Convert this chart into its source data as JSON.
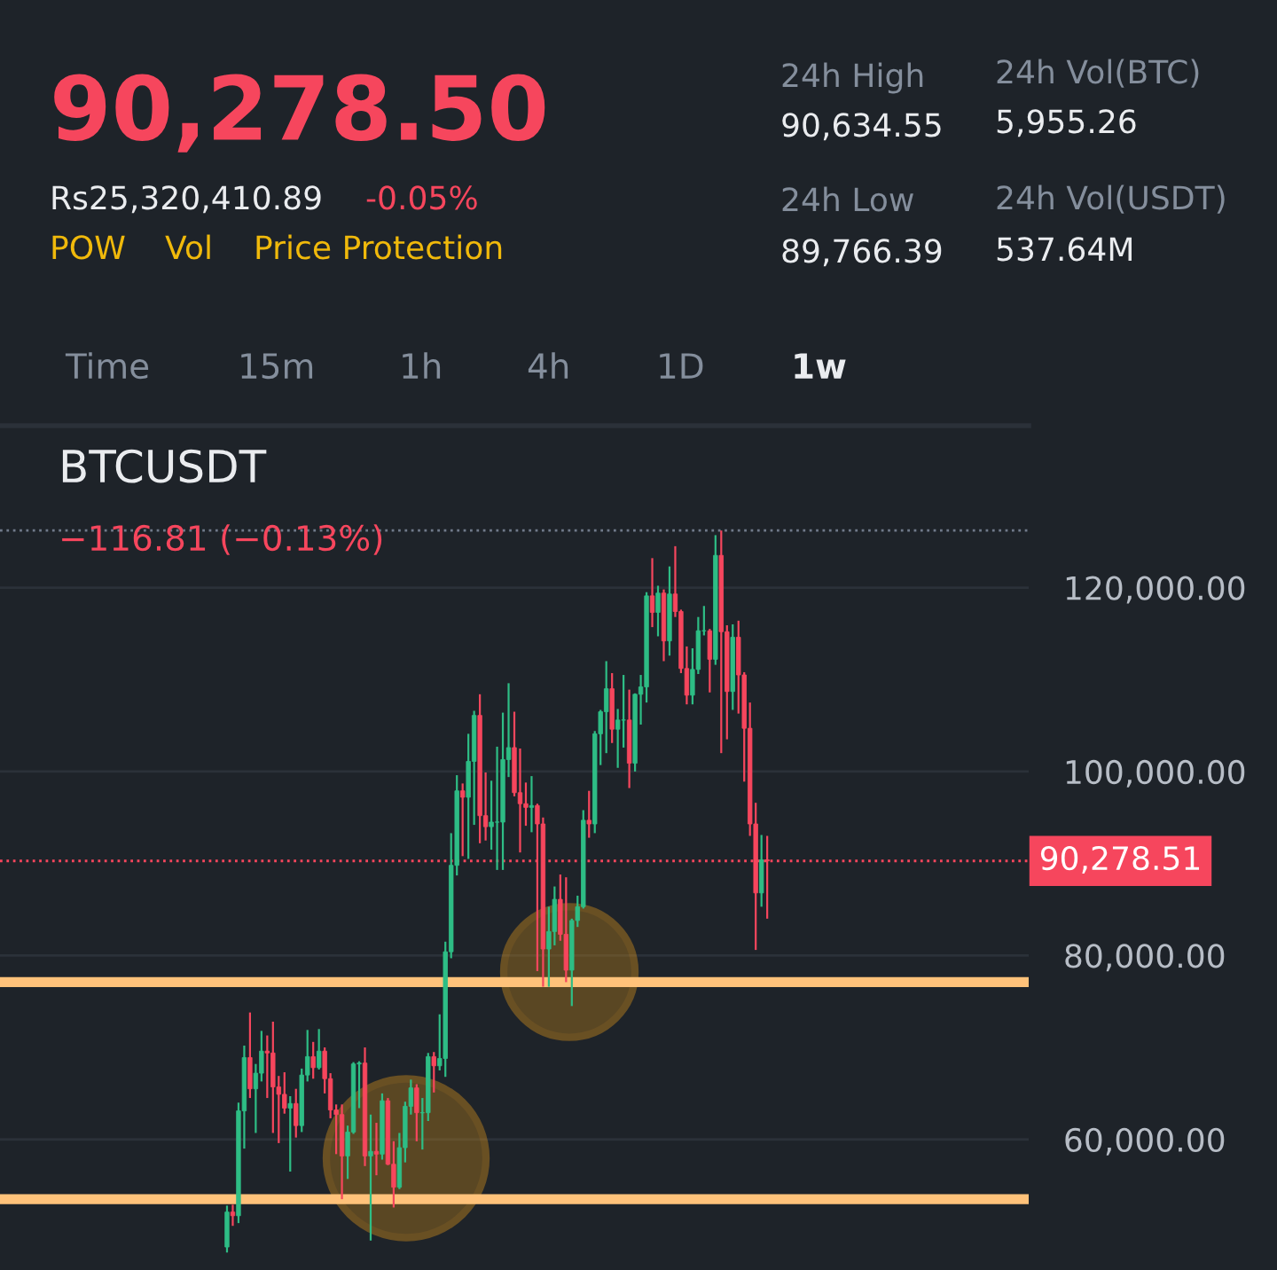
{
  "chart_data": {
    "type": "candlestick",
    "title": "BTCUSDT",
    "annotations": [
      "−116.81 (−0.13%)",
      "90,278.50",
      "Rs25,320,410.89",
      "-0.05%",
      "POW",
      "Vol",
      "Price Protection",
      "24h High",
      "90,634.55",
      "24h Low",
      "89,766.39",
      "24h Vol(BTC)",
      "5,955.26",
      "24h Vol(USDT)",
      "537.64M",
      "Time",
      "15m",
      "1h",
      "4h",
      "1D",
      "1w"
    ],
    "categories": [
      null,
      null,
      null,
      null,
      null,
      null,
      null,
      null,
      null,
      null,
      null,
      null,
      null,
      null,
      null,
      null,
      null,
      null,
      null,
      null,
      null,
      null,
      null,
      null,
      null,
      null,
      null,
      null,
      null,
      null,
      null,
      null,
      null,
      null,
      null,
      null,
      null,
      null,
      null,
      null,
      null,
      null,
      null,
      null,
      null,
      null,
      null,
      null,
      null,
      null,
      null,
      null,
      null,
      null,
      null,
      null,
      null,
      null,
      null,
      null,
      null,
      null,
      null,
      null,
      null,
      null,
      null,
      null,
      null,
      null,
      null,
      null,
      null,
      null,
      null,
      null,
      null,
      null,
      null,
      null,
      null,
      null,
      null,
      null,
      null,
      null,
      null,
      null,
      null,
      null,
      null,
      null,
      null,
      null,
      null,
      null,
      null,
      null,
      null,
      null,
      null,
      null,
      null,
      null,
      null,
      null,
      null,
      null,
      null,
      null,
      null,
      null,
      null,
      null,
      null,
      null,
      null,
      null,
      null,
      null,
      null,
      null,
      null,
      null,
      null,
      null,
      null,
      null,
      null,
      null,
      null,
      null,
      null,
      null,
      null,
      null,
      null,
      null,
      null,
      null,
      null,
      null,
      null,
      null,
      null,
      null,
      null,
      null,
      null,
      null,
      null,
      null,
      null,
      null,
      null,
      null,
      null,
      null,
      null,
      null,
      null,
      null,
      null,
      null,
      null,
      null,
      null,
      null,
      null,
      null,
      null,
      null,
      null,
      null,
      null,
      null,
      null,
      null,
      null
    ],
    "ohlc": [
      null,
      null,
      null,
      null,
      null,
      null,
      null,
      null,
      null,
      null,
      null,
      null,
      null,
      null,
      null,
      null,
      null,
      null,
      null,
      null,
      null,
      null,
      null,
      null,
      null,
      null,
      null,
      null,
      null,
      null,
      null,
      null,
      null,
      null,
      null,
      null,
      null,
      null,
      null,
      [
        48300,
        52800,
        47700,
        52100
      ],
      [
        52100,
        52900,
        50600,
        51700
      ],
      [
        51700,
        64000,
        50900,
        63100
      ],
      [
        63100,
        70200,
        59000,
        68900
      ],
      [
        68900,
        73800,
        64500,
        65500
      ],
      [
        65500,
        68200,
        60700,
        67200
      ],
      [
        67200,
        71800,
        66300,
        69600
      ],
      [
        69600,
        71300,
        64500,
        69400
      ],
      [
        69400,
        72800,
        60700,
        65700
      ],
      [
        65700,
        66900,
        59600,
        64900
      ],
      [
        64900,
        67300,
        62800,
        63400
      ],
      [
        63400,
        64700,
        56500,
        63900
      ],
      [
        63900,
        65500,
        60200,
        61500
      ],
      [
        61500,
        67700,
        60800,
        67000
      ],
      [
        67000,
        71900,
        66300,
        69000
      ],
      [
        69000,
        70600,
        66600,
        67800
      ],
      [
        67800,
        72000,
        67600,
        69600
      ],
      [
        69600,
        70000,
        65000,
        66600
      ],
      [
        66600,
        67200,
        62300,
        63200
      ],
      [
        63200,
        63800,
        58400,
        62700
      ],
      [
        62700,
        63800,
        53500,
        58200
      ],
      [
        58200,
        61500,
        55700,
        60800
      ],
      [
        60800,
        68400,
        60600,
        68200
      ],
      [
        68200,
        68500,
        63400,
        68300
      ],
      [
        68300,
        70000,
        57100,
        58200
      ],
      [
        58200,
        62700,
        49000,
        58700
      ],
      [
        58700,
        61800,
        56100,
        58400
      ],
      [
        58400,
        65000,
        57800,
        64200
      ],
      [
        64200,
        64500,
        57200,
        57300
      ],
      [
        57300,
        59800,
        52600,
        54800
      ],
      [
        54800,
        60700,
        54600,
        59100
      ],
      [
        59100,
        64100,
        57500,
        63600
      ],
      [
        63600,
        66500,
        62700,
        65600
      ],
      [
        65600,
        66000,
        59800,
        62900
      ],
      [
        62900,
        64500,
        58900,
        62900
      ],
      [
        62900,
        69400,
        62000,
        69000
      ],
      [
        69000,
        69500,
        65100,
        68000
      ],
      [
        68000,
        73600,
        67500,
        68800
      ],
      [
        68800,
        81500,
        66800,
        80400
      ],
      [
        80400,
        93300,
        79700,
        89800
      ],
      [
        89800,
        99600,
        88700,
        97900
      ],
      [
        97900,
        98700,
        90800,
        97200
      ],
      [
        97200,
        104100,
        90500,
        101100
      ],
      [
        101100,
        106600,
        94200,
        106100
      ],
      [
        106100,
        108400,
        92200,
        95200
      ],
      [
        95200,
        99900,
        92500,
        94000
      ],
      [
        94000,
        99000,
        91500,
        94500
      ],
      [
        94500,
        102700,
        89300,
        94500
      ],
      [
        94500,
        106400,
        89300,
        101300
      ],
      [
        101300,
        109600,
        99400,
        102600
      ],
      [
        102600,
        106500,
        97300,
        97700
      ],
      [
        97700,
        102500,
        91200,
        96500
      ],
      [
        96500,
        98800,
        94100,
        96100
      ],
      [
        96100,
        99500,
        93400,
        96300
      ],
      [
        96300,
        96500,
        78300,
        94300
      ],
      [
        94300,
        95000,
        76600,
        80700
      ],
      [
        80700,
        85300,
        76600,
        82600
      ],
      [
        82600,
        87500,
        81100,
        86100
      ],
      [
        86100,
        88800,
        81600,
        82300
      ],
      [
        82300,
        88500,
        77100,
        78400
      ],
      [
        78400,
        84000,
        74500,
        83800
      ],
      [
        83800,
        86500,
        83100,
        85300
      ],
      [
        85300,
        95800,
        85100,
        94700
      ],
      [
        94700,
        97900,
        92800,
        94300
      ],
      [
        94300,
        104400,
        93300,
        104100
      ],
      [
        104100,
        106700,
        100700,
        106500
      ],
      [
        106500,
        112000,
        102000,
        109000
      ],
      [
        109000,
        110700,
        103100,
        104600
      ],
      [
        104600,
        106800,
        100400,
        105600
      ],
      [
        105600,
        110500,
        102600,
        105600
      ],
      [
        105600,
        108900,
        98200,
        100900
      ],
      [
        100900,
        108500,
        100000,
        108400
      ],
      [
        108400,
        110500,
        105100,
        109200
      ],
      [
        109200,
        119500,
        107500,
        119100
      ],
      [
        119100,
        123200,
        115700,
        117300
      ],
      [
        117300,
        120200,
        114700,
        119400
      ],
      [
        119400,
        119800,
        112000,
        114200
      ],
      [
        114200,
        122300,
        112600,
        119300
      ],
      [
        119300,
        124500,
        116800,
        117400
      ],
      [
        117400,
        117600,
        110700,
        111200
      ],
      [
        111200,
        113600,
        107300,
        108300
      ],
      [
        108300,
        113400,
        107300,
        111100
      ],
      [
        111100,
        116800,
        110600,
        115300
      ],
      [
        115300,
        118000,
        114800,
        115300
      ],
      [
        115300,
        115500,
        108600,
        112200
      ],
      [
        112200,
        125700,
        111600,
        123500
      ],
      [
        123500,
        126200,
        102000,
        115200
      ],
      [
        115200,
        115900,
        103500,
        108700
      ],
      [
        108700,
        116000,
        106700,
        114600
      ],
      [
        114600,
        116400,
        106300,
        110500
      ],
      [
        110500,
        110800,
        98900,
        104700
      ],
      [
        104700,
        107500,
        93000,
        94300
      ],
      [
        94300,
        96600,
        80600,
        86800
      ],
      [
        86800,
        93100,
        85300,
        90400
      ],
      [
        90400,
        93000,
        84000,
        90278.51
      ],
      null,
      null,
      null,
      null,
      null,
      null,
      null,
      null,
      null,
      null,
      null,
      null,
      null,
      null,
      null,
      null,
      null,
      null,
      null,
      null,
      null,
      null,
      null,
      null,
      null,
      null,
      null,
      null,
      null,
      null,
      null,
      null,
      null,
      null,
      null,
      null,
      null,
      null,
      null,
      null,
      null,
      null,
      null,
      null,
      null
    ],
    "ylim": [
      45800,
      137600
    ],
    "yticks": [
      {
        "value": 60000,
        "label": "60,000.00"
      },
      {
        "value": 80000,
        "label": "80,000.00"
      },
      {
        "value": 100000,
        "label": "100,000.00"
      },
      {
        "value": 120000,
        "label": "120,000.00"
      }
    ],
    "grid": "y",
    "ref_lines": [
      {
        "axis": "y",
        "value": 90278.51,
        "label": "90,278.51",
        "color": "#f6465d",
        "line_style": "dotted"
      },
      {
        "axis": "y",
        "value": 126200,
        "label": null,
        "color": "#707a8a",
        "line_style": "dotted"
      },
      {
        "axis": "y",
        "value": 77100,
        "label": null,
        "color": "#ffc27a",
        "line_style": "solid"
      },
      {
        "axis": "y",
        "value": 53500,
        "label": null,
        "color": "#ffc27a",
        "line_style": "solid"
      }
    ]
  }
}
